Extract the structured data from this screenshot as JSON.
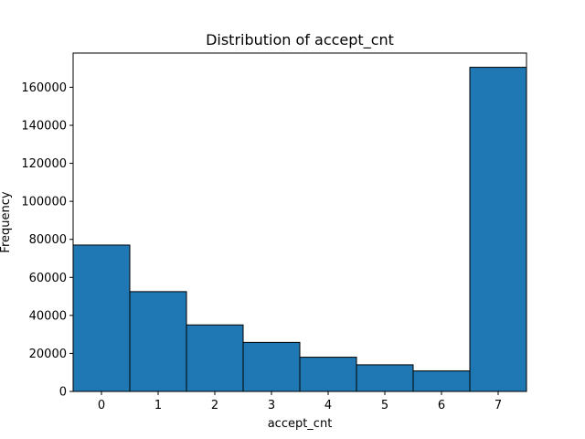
{
  "chart_data": {
    "type": "bar",
    "title": "Distribution of accept_cnt",
    "xlabel": "accept_cnt",
    "ylabel": "Frequency",
    "categories": [
      "0",
      "1",
      "2",
      "3",
      "4",
      "5",
      "6",
      "7"
    ],
    "values": [
      77000,
      52500,
      35000,
      25800,
      18000,
      14000,
      10800,
      170500
    ],
    "xlim": [
      -0.5,
      7.5
    ],
    "ylim": [
      0,
      178000
    ],
    "yticks": [
      0,
      20000,
      40000,
      60000,
      80000,
      100000,
      120000,
      140000,
      160000
    ],
    "ytick_labels": [
      "0",
      "20000",
      "40000",
      "60000",
      "80000",
      "100000",
      "120000",
      "140000",
      "160000"
    ],
    "grid": false,
    "bar_color": "#1f77b4",
    "edge_color": "#000000"
  }
}
